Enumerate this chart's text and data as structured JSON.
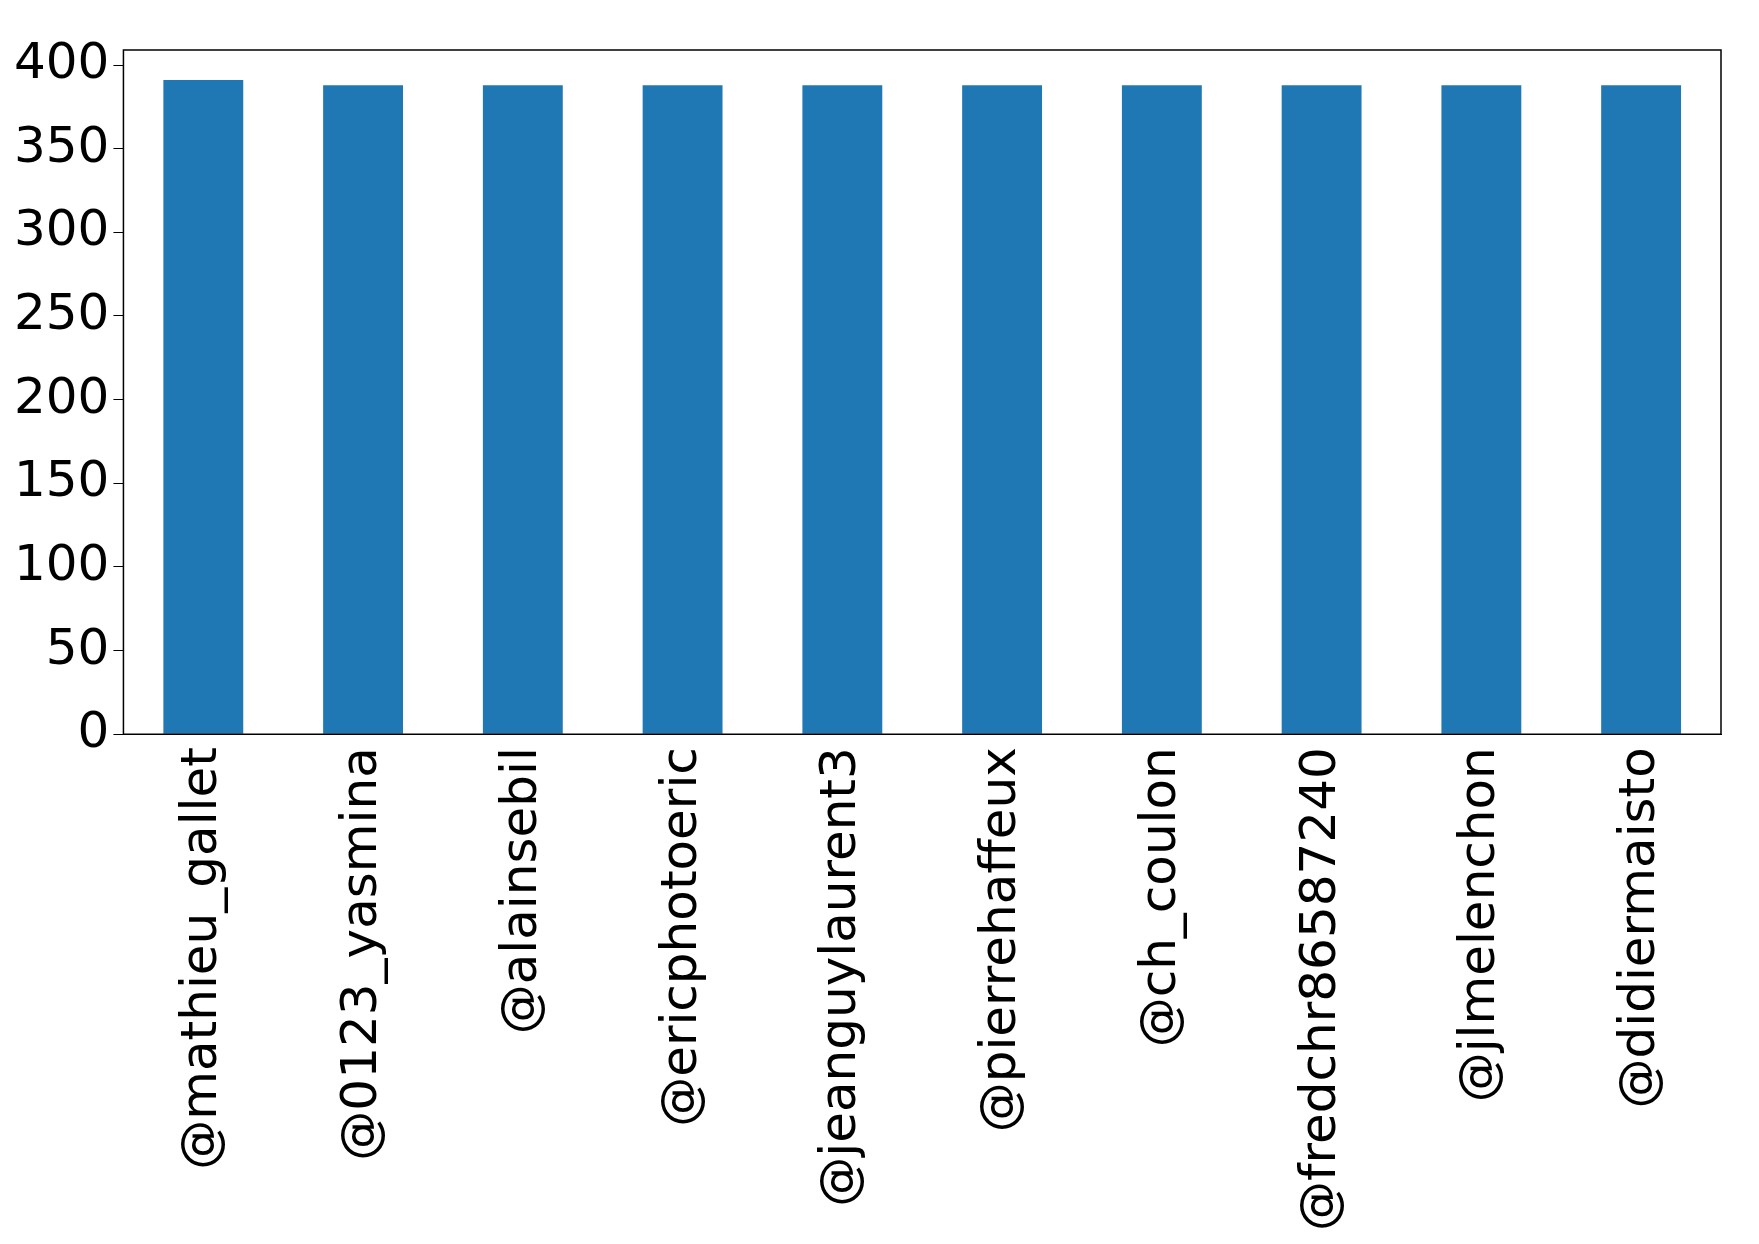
{
  "chart_data": {
    "type": "bar",
    "categories": [
      "@mathieu_gallet",
      "@0123_yasmina",
      "@alainsebil",
      "@ericphotoeric",
      "@jeanguylaurent3",
      "@pierrehaffeux",
      "@ch_coulon",
      "@fredchr86587240",
      "@jlmelenchon",
      "@didiermaisto"
    ],
    "values": [
      391,
      388,
      388,
      388,
      388,
      388,
      388,
      388,
      388,
      388
    ],
    "color": "#1f77b4",
    "ylim": [
      0,
      409
    ],
    "yticks": [
      0,
      50,
      100,
      150,
      200,
      250,
      300,
      350,
      400
    ],
    "grid": false,
    "legend": false
  }
}
